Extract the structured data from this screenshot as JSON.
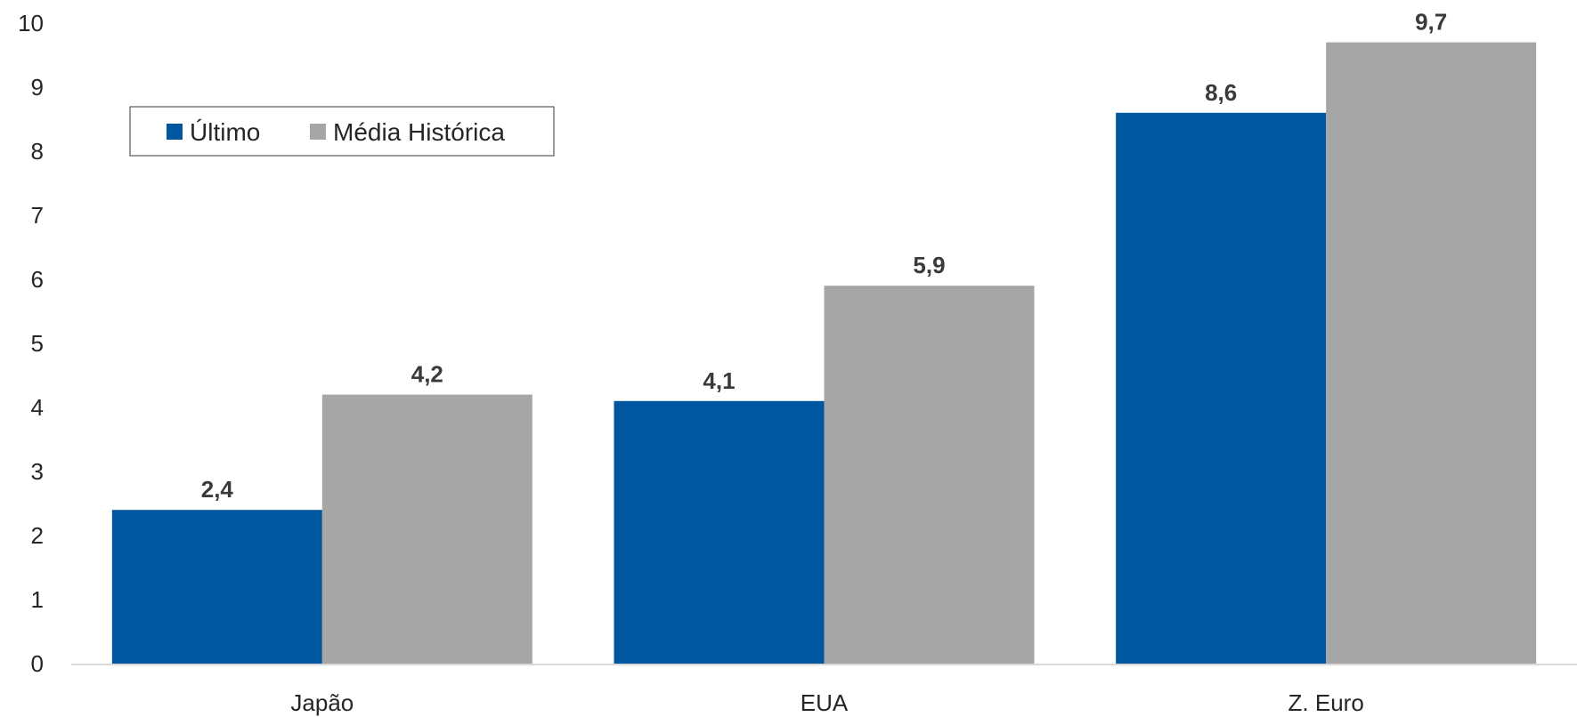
{
  "chart_data": {
    "type": "bar",
    "title": "",
    "xlabel": "",
    "ylabel": "",
    "categories": [
      "Japão",
      "EUA",
      "Z. Euro"
    ],
    "series": [
      {
        "name": "Último",
        "values": [
          2.4,
          4.1,
          8.6
        ],
        "labels": [
          "2,4",
          "4,1",
          "8,6"
        ],
        "color": "#00569f"
      },
      {
        "name": "Média Histórica",
        "values": [
          4.2,
          5.9,
          9.7
        ],
        "labels": [
          "4,2",
          "5,9",
          "9,7"
        ],
        "color": "#a6a6a6"
      }
    ],
    "ylim": [
      0,
      10
    ],
    "yticks": [
      "0",
      "1",
      "2",
      "3",
      "4",
      "5",
      "6",
      "7",
      "8",
      "9",
      "10"
    ],
    "grid": false,
    "legend_position": "top-left"
  }
}
